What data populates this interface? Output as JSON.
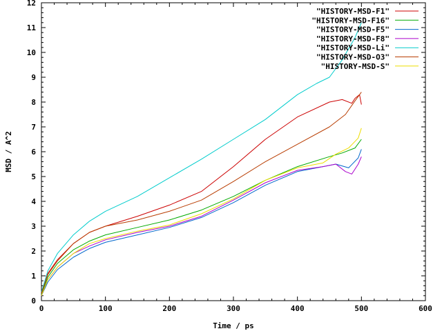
{
  "chart_data": {
    "type": "line",
    "xlabel": "Time / ps",
    "ylabel": "MSD / A^2",
    "xlim": [
      0,
      600
    ],
    "ylim": [
      0,
      12
    ],
    "x_ticks": [
      "0",
      "100",
      "200",
      "300",
      "400",
      "500",
      "600"
    ],
    "y_ticks": [
      "0",
      "1",
      "2",
      "3",
      "4",
      "5",
      "6",
      "7",
      "8",
      "9",
      "10",
      "11",
      "12"
    ],
    "grid": false,
    "legend_position": "top-right",
    "series": [
      {
        "name": "\"HISTORY-MSD-F1\"",
        "color": "#cc0000",
        "points": [
          [
            0,
            0.3
          ],
          [
            10,
            1.1
          ],
          [
            25,
            1.65
          ],
          [
            50,
            2.3
          ],
          [
            75,
            2.75
          ],
          [
            100,
            3.0
          ],
          [
            150,
            3.4
          ],
          [
            200,
            3.85
          ],
          [
            250,
            4.4
          ],
          [
            300,
            5.4
          ],
          [
            350,
            6.5
          ],
          [
            400,
            7.4
          ],
          [
            450,
            8.0
          ],
          [
            470,
            8.1
          ],
          [
            485,
            7.95
          ],
          [
            490,
            8.15
          ],
          [
            497,
            8.3
          ],
          [
            500,
            7.9
          ]
        ]
      },
      {
        "name": "\"HISTORY-MSD-F16\"",
        "color": "#00aa00",
        "points": [
          [
            0,
            0.25
          ],
          [
            10,
            0.95
          ],
          [
            25,
            1.5
          ],
          [
            50,
            2.05
          ],
          [
            75,
            2.4
          ],
          [
            100,
            2.65
          ],
          [
            150,
            2.95
          ],
          [
            200,
            3.25
          ],
          [
            250,
            3.65
          ],
          [
            300,
            4.2
          ],
          [
            350,
            4.85
          ],
          [
            400,
            5.4
          ],
          [
            450,
            5.8
          ],
          [
            470,
            5.95
          ],
          [
            490,
            6.15
          ],
          [
            500,
            6.5
          ]
        ]
      },
      {
        "name": "\"HISTORY-MSD-F5\"",
        "color": "#0066cc",
        "points": [
          [
            0,
            0.2
          ],
          [
            10,
            0.75
          ],
          [
            25,
            1.25
          ],
          [
            50,
            1.75
          ],
          [
            75,
            2.1
          ],
          [
            100,
            2.35
          ],
          [
            150,
            2.65
          ],
          [
            200,
            2.95
          ],
          [
            250,
            3.35
          ],
          [
            300,
            3.95
          ],
          [
            350,
            4.65
          ],
          [
            400,
            5.2
          ],
          [
            440,
            5.4
          ],
          [
            460,
            5.5
          ],
          [
            480,
            5.35
          ],
          [
            495,
            5.75
          ],
          [
            500,
            6.1
          ]
        ]
      },
      {
        "name": "\"HISTORY-MSD-F8\"",
        "color": "#aa00cc",
        "points": [
          [
            0,
            0.2
          ],
          [
            10,
            0.85
          ],
          [
            25,
            1.35
          ],
          [
            50,
            1.9
          ],
          [
            75,
            2.2
          ],
          [
            100,
            2.45
          ],
          [
            150,
            2.75
          ],
          [
            200,
            3.0
          ],
          [
            250,
            3.4
          ],
          [
            300,
            4.05
          ],
          [
            350,
            4.75
          ],
          [
            400,
            5.25
          ],
          [
            440,
            5.4
          ],
          [
            460,
            5.5
          ],
          [
            475,
            5.2
          ],
          [
            485,
            5.1
          ],
          [
            495,
            5.5
          ],
          [
            500,
            5.8
          ]
        ]
      },
      {
        "name": "\"HISTORY-MSD-Li\"",
        "color": "#00cccc",
        "points": [
          [
            0,
            0.35
          ],
          [
            10,
            1.2
          ],
          [
            25,
            1.9
          ],
          [
            50,
            2.65
          ],
          [
            75,
            3.2
          ],
          [
            100,
            3.6
          ],
          [
            150,
            4.2
          ],
          [
            200,
            4.95
          ],
          [
            250,
            5.7
          ],
          [
            300,
            6.5
          ],
          [
            350,
            7.3
          ],
          [
            400,
            8.3
          ],
          [
            430,
            8.75
          ],
          [
            450,
            9.0
          ],
          [
            470,
            9.7
          ],
          [
            490,
            10.6
          ],
          [
            500,
            11.2
          ]
        ]
      },
      {
        "name": "\"HISTORY-MSD-O3\"",
        "color": "#b83c00",
        "points": [
          [
            0,
            0.3
          ],
          [
            10,
            1.05
          ],
          [
            25,
            1.6
          ],
          [
            50,
            2.3
          ],
          [
            75,
            2.75
          ],
          [
            100,
            3.0
          ],
          [
            150,
            3.25
          ],
          [
            200,
            3.6
          ],
          [
            250,
            4.05
          ],
          [
            300,
            4.8
          ],
          [
            350,
            5.6
          ],
          [
            400,
            6.3
          ],
          [
            450,
            7.0
          ],
          [
            475,
            7.5
          ],
          [
            490,
            8.05
          ],
          [
            500,
            8.4
          ]
        ]
      },
      {
        "name": "\"HISTORY-MSD-S\"",
        "color": "#eedd00",
        "points": [
          [
            0,
            0.2
          ],
          [
            10,
            0.85
          ],
          [
            25,
            1.35
          ],
          [
            50,
            1.9
          ],
          [
            75,
            2.3
          ],
          [
            100,
            2.5
          ],
          [
            150,
            2.8
          ],
          [
            200,
            3.05
          ],
          [
            250,
            3.5
          ],
          [
            300,
            4.1
          ],
          [
            350,
            4.85
          ],
          [
            400,
            5.35
          ],
          [
            440,
            5.55
          ],
          [
            460,
            5.9
          ],
          [
            480,
            6.15
          ],
          [
            495,
            6.55
          ],
          [
            500,
            6.95
          ]
        ]
      }
    ]
  }
}
